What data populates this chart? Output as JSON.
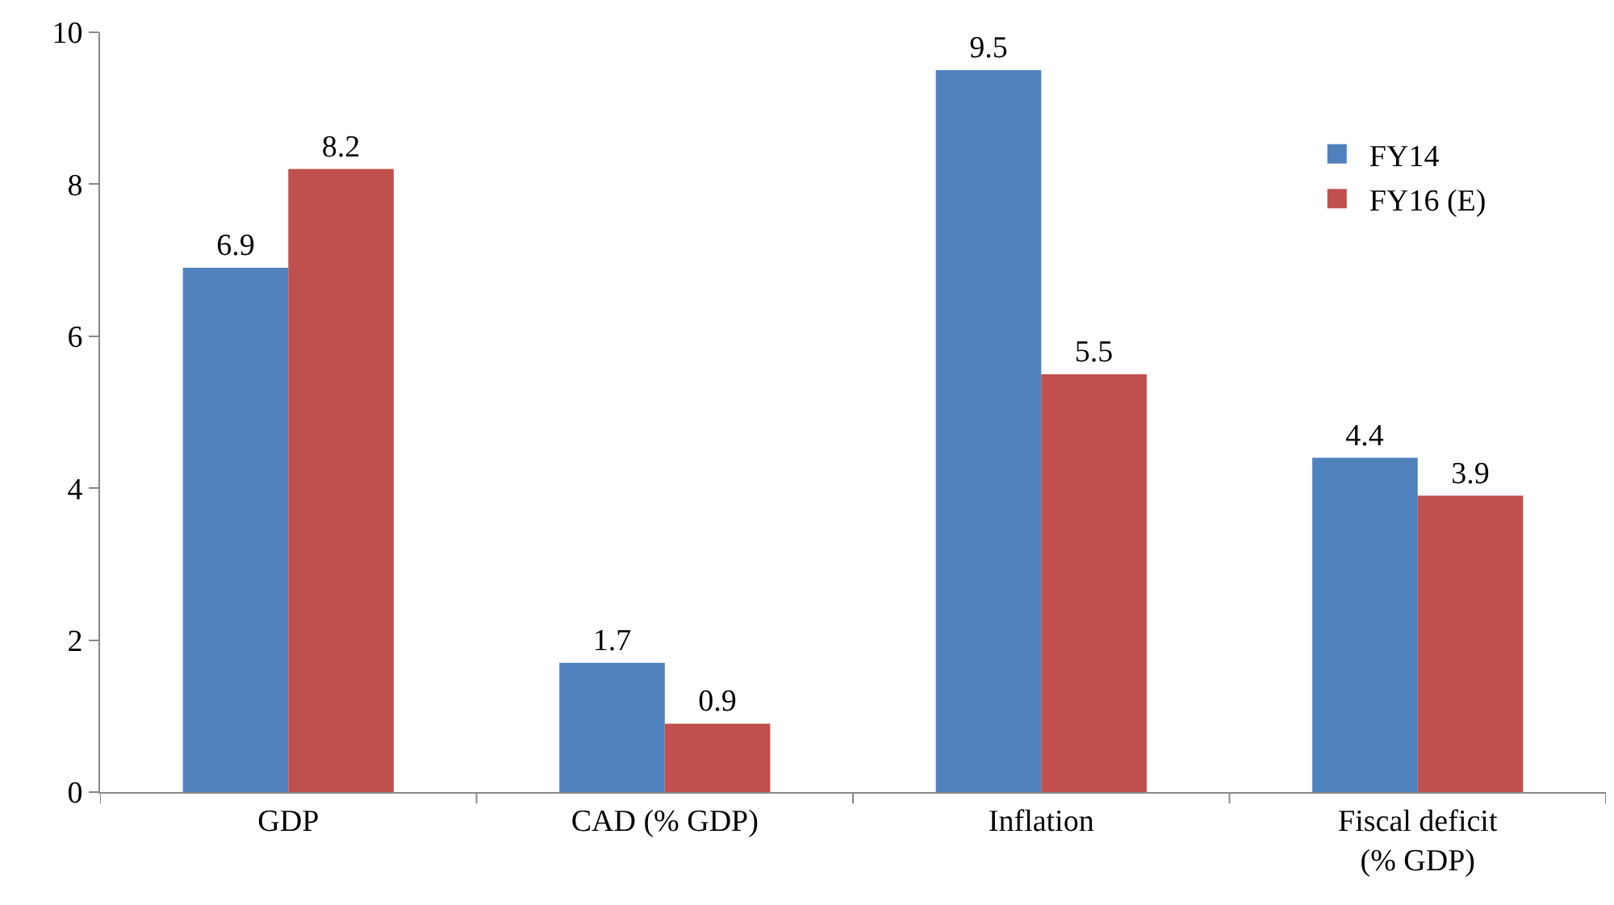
{
  "chart_data": {
    "type": "bar",
    "categories": [
      "GDP",
      "CAD (% GDP)",
      "Inflation",
      "Fiscal deficit\n(% GDP)"
    ],
    "series": [
      {
        "name": "FY14",
        "color": "#4f81bd",
        "values": [
          6.9,
          1.7,
          9.5,
          4.4
        ]
      },
      {
        "name": "FY16 (E)",
        "color": "#c0504d",
        "values": [
          8.2,
          0.9,
          5.5,
          3.9
        ]
      }
    ],
    "ylim": [
      0,
      10
    ],
    "yticks": [
      0,
      2,
      4,
      6,
      8,
      10
    ],
    "legend": "top right",
    "data_labels": true
  }
}
